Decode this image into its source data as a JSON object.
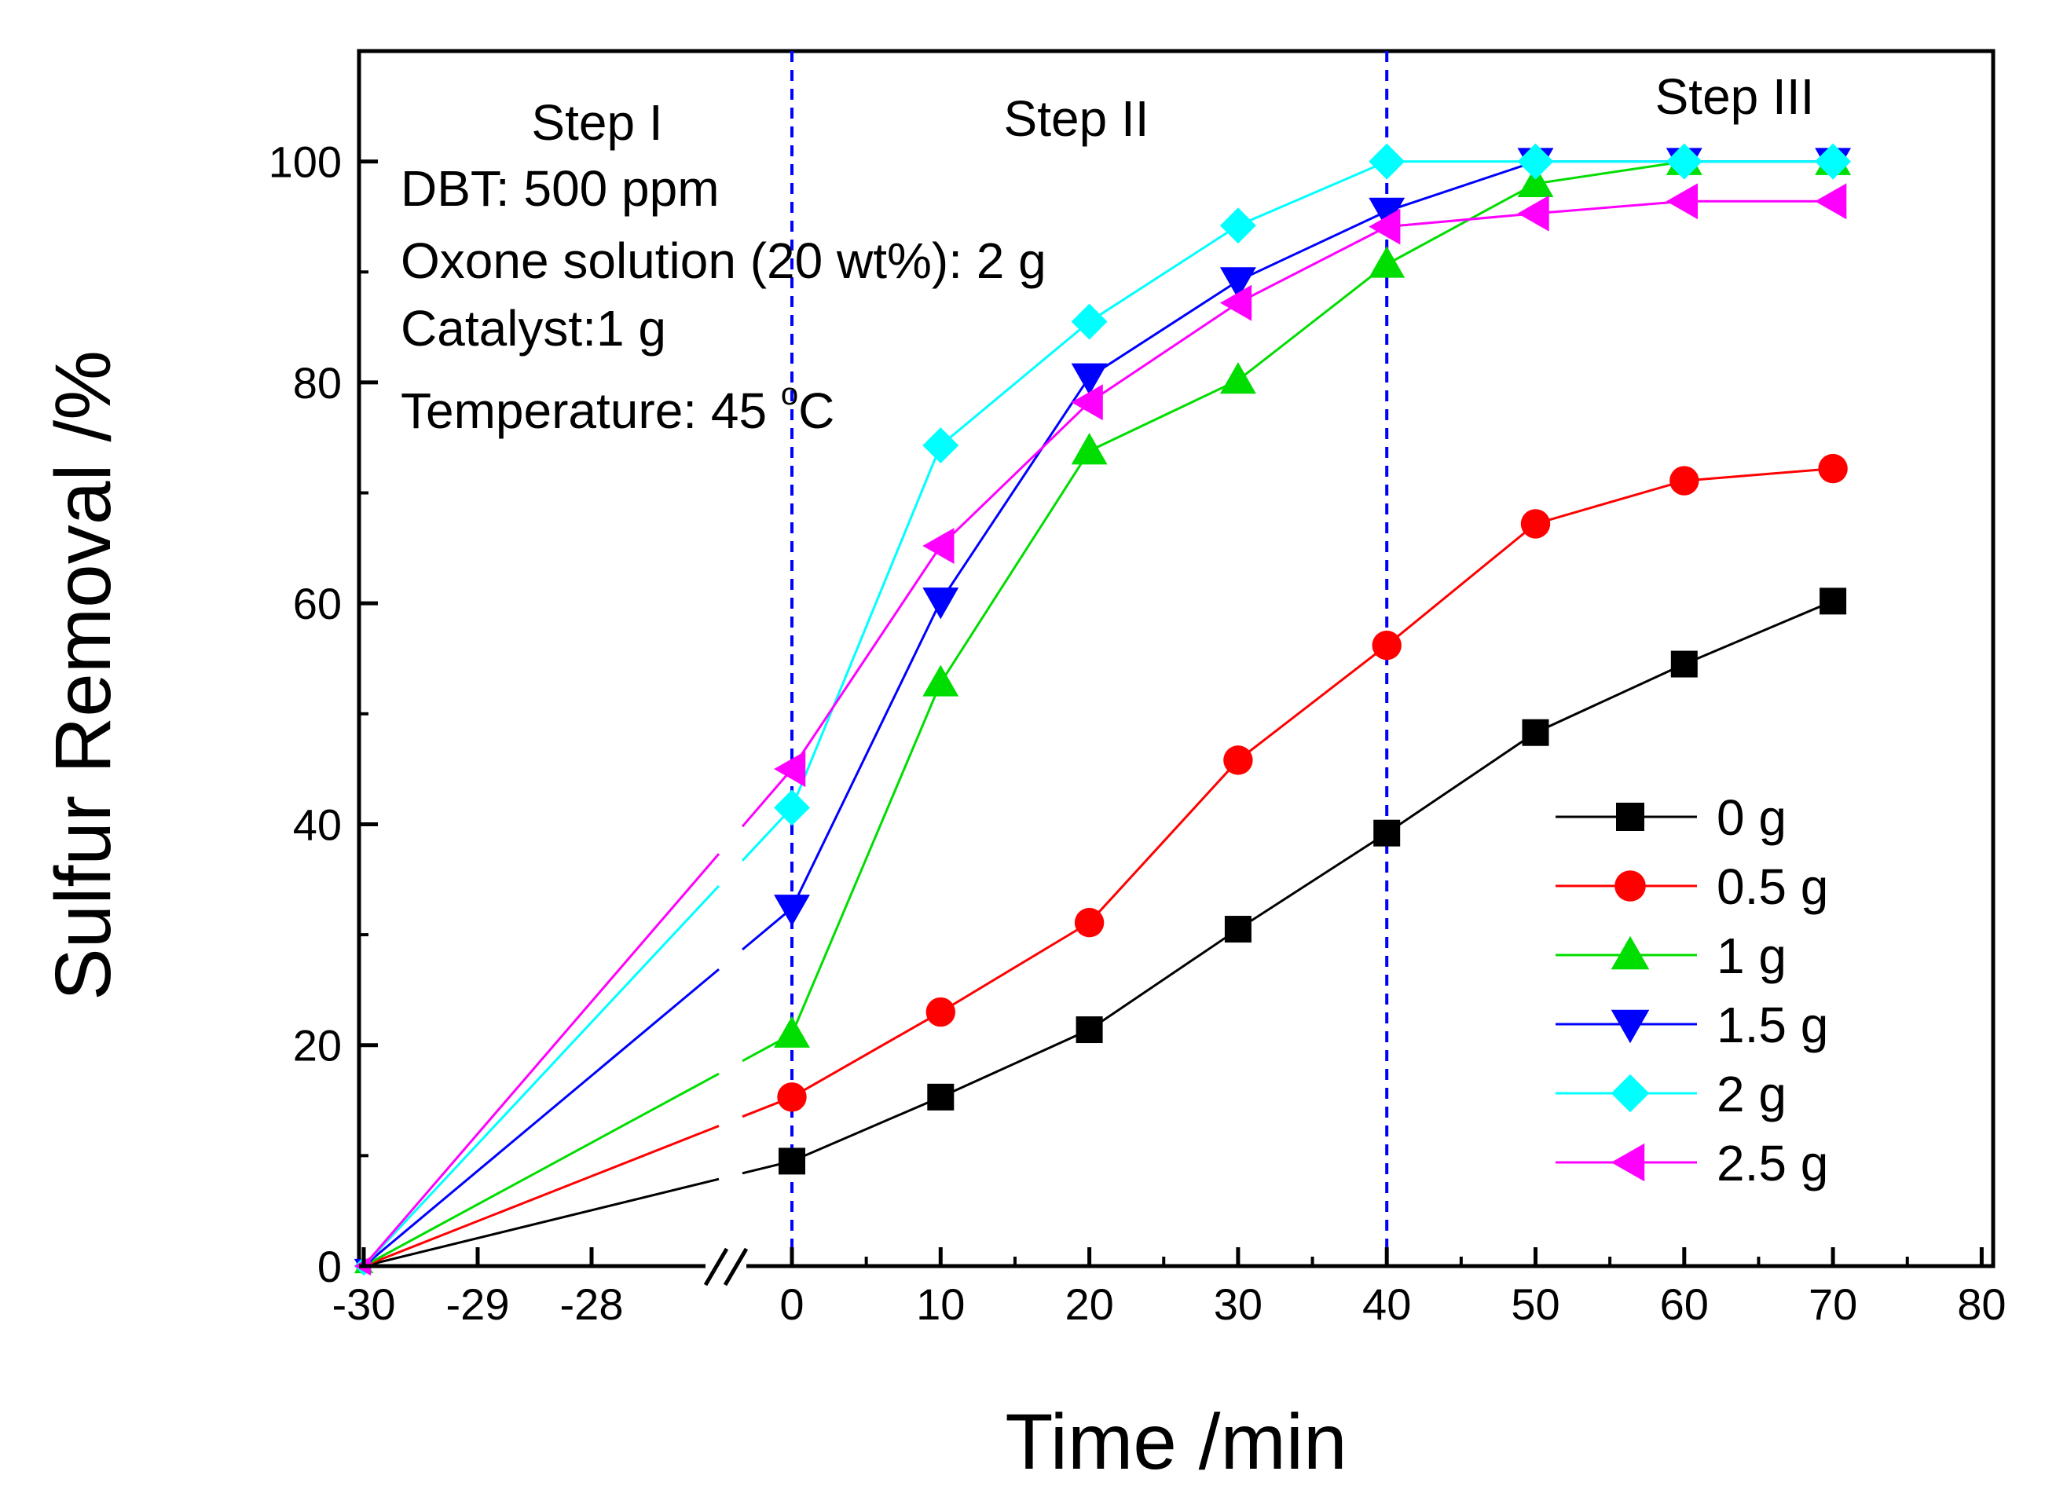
{
  "chart_data": {
    "type": "line",
    "title": "",
    "xlabel": "Time /min",
    "ylabel": "Sulfur Removal /%",
    "ylim": [
      0,
      110
    ],
    "y_ticks": [
      "0",
      "20",
      "40",
      "60",
      "80",
      "100"
    ],
    "x_ticks": [
      "-30",
      "-29",
      "-28",
      "0",
      "10",
      "20",
      "30",
      "40",
      "50",
      "60",
      "70",
      "80"
    ],
    "x_axis_break": "between -28 and 0",
    "x": [
      -30,
      0,
      10,
      20,
      30,
      40,
      50,
      60,
      70
    ],
    "series": [
      {
        "name": "0 g",
        "color": "#000000",
        "marker": "square",
        "values": [
          0,
          9.5,
          15.3,
          21.4,
          30.5,
          39.2,
          48.3,
          54.5,
          60.2
        ]
      },
      {
        "name": "0.5 g",
        "color": "#ff0000",
        "marker": "circle",
        "values": [
          0,
          15.3,
          23,
          31.1,
          45.8,
          56.2,
          67.2,
          71.1,
          72.2
        ]
      },
      {
        "name": "1 g",
        "color": "#00dd00",
        "marker": "triangle-up",
        "values": [
          0,
          21,
          52.8,
          73.8,
          80.2,
          90.7,
          98,
          100,
          100
        ]
      },
      {
        "name": "1.5 g",
        "color": "#0000ff",
        "marker": "triangle-down",
        "values": [
          0,
          32.4,
          60.2,
          80.5,
          89.2,
          95.5,
          100,
          100,
          100
        ]
      },
      {
        "name": "2 g",
        "color": "#00ffff",
        "marker": "diamond",
        "values": [
          0,
          41.5,
          74.3,
          85.5,
          94.2,
          100,
          100,
          100,
          100
        ]
      },
      {
        "name": "2.5 g",
        "color": "#ff00ff",
        "marker": "triangle-left",
        "values": [
          0,
          45,
          65.2,
          78.2,
          87.2,
          94.1,
          95.3,
          96.4,
          96.4
        ]
      }
    ],
    "vlines": [
      {
        "x": 0,
        "color": "#0000ff",
        "style": "dashed"
      },
      {
        "x": 40,
        "color": "#0000ff",
        "style": "dashed"
      }
    ],
    "steps": [
      {
        "label": "Step I",
        "x": -29
      },
      {
        "label": "Step II",
        "x": 19
      },
      {
        "label": "Step III",
        "x": 63
      }
    ],
    "legend_position": "bottom-right",
    "annotations": {
      "dbt": "DBT: 500 ppm",
      "oxone": "Oxone solution (20 wt%): 2 g",
      "catalyst": "Catalyst:1 g",
      "temperature_prefix": "Temperature: 45 ",
      "temperature_degree": "o",
      "temperature_unit": "C"
    }
  }
}
